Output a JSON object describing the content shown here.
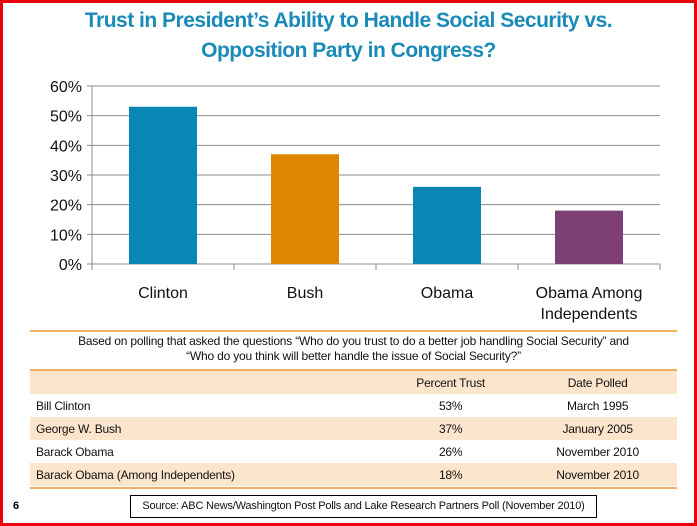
{
  "chart_data": {
    "type": "bar",
    "title": "Trust in President’s Ability to Handle Social Security vs. Opposition Party in Congress?",
    "categories": [
      "Clinton",
      "Bush",
      "Obama",
      "Obama Among Independents"
    ],
    "values": [
      53,
      37,
      26,
      18
    ],
    "colors": [
      "#0a86b6",
      "#e08600",
      "#0a86b6",
      "#7d3f74"
    ],
    "ylim": [
      0,
      60
    ],
    "yticks": [
      "0%",
      "10%",
      "20%",
      "30%",
      "40%",
      "50%",
      "60%"
    ],
    "grid": true,
    "xlabel": "",
    "ylabel": ""
  },
  "title_line1": "Trust in President’s Ability to Handle Social Security vs.",
  "title_line2": "Opposition Party in Congress?",
  "note_line1": "Based on polling  that asked the questions “Who do you trust to do a better job handling Social Security” and",
  "note_line2": "“Who do you think will better handle the issue of Social Security?”",
  "table": {
    "headers": [
      "",
      "Percent Trust",
      "Date Polled"
    ],
    "rows": [
      [
        "Bill Clinton",
        "53%",
        "March 1995"
      ],
      [
        "George W. Bush",
        "37%",
        "January 2005"
      ],
      [
        "Barack Obama",
        "26%",
        "November 2010"
      ],
      [
        "Barack Obama (Among Independents)",
        "18%",
        "November 2010"
      ]
    ]
  },
  "source": "Source: ABC News/Washington Post Polls and Lake Research Partners Poll (November 2010)",
  "page_number": "6"
}
